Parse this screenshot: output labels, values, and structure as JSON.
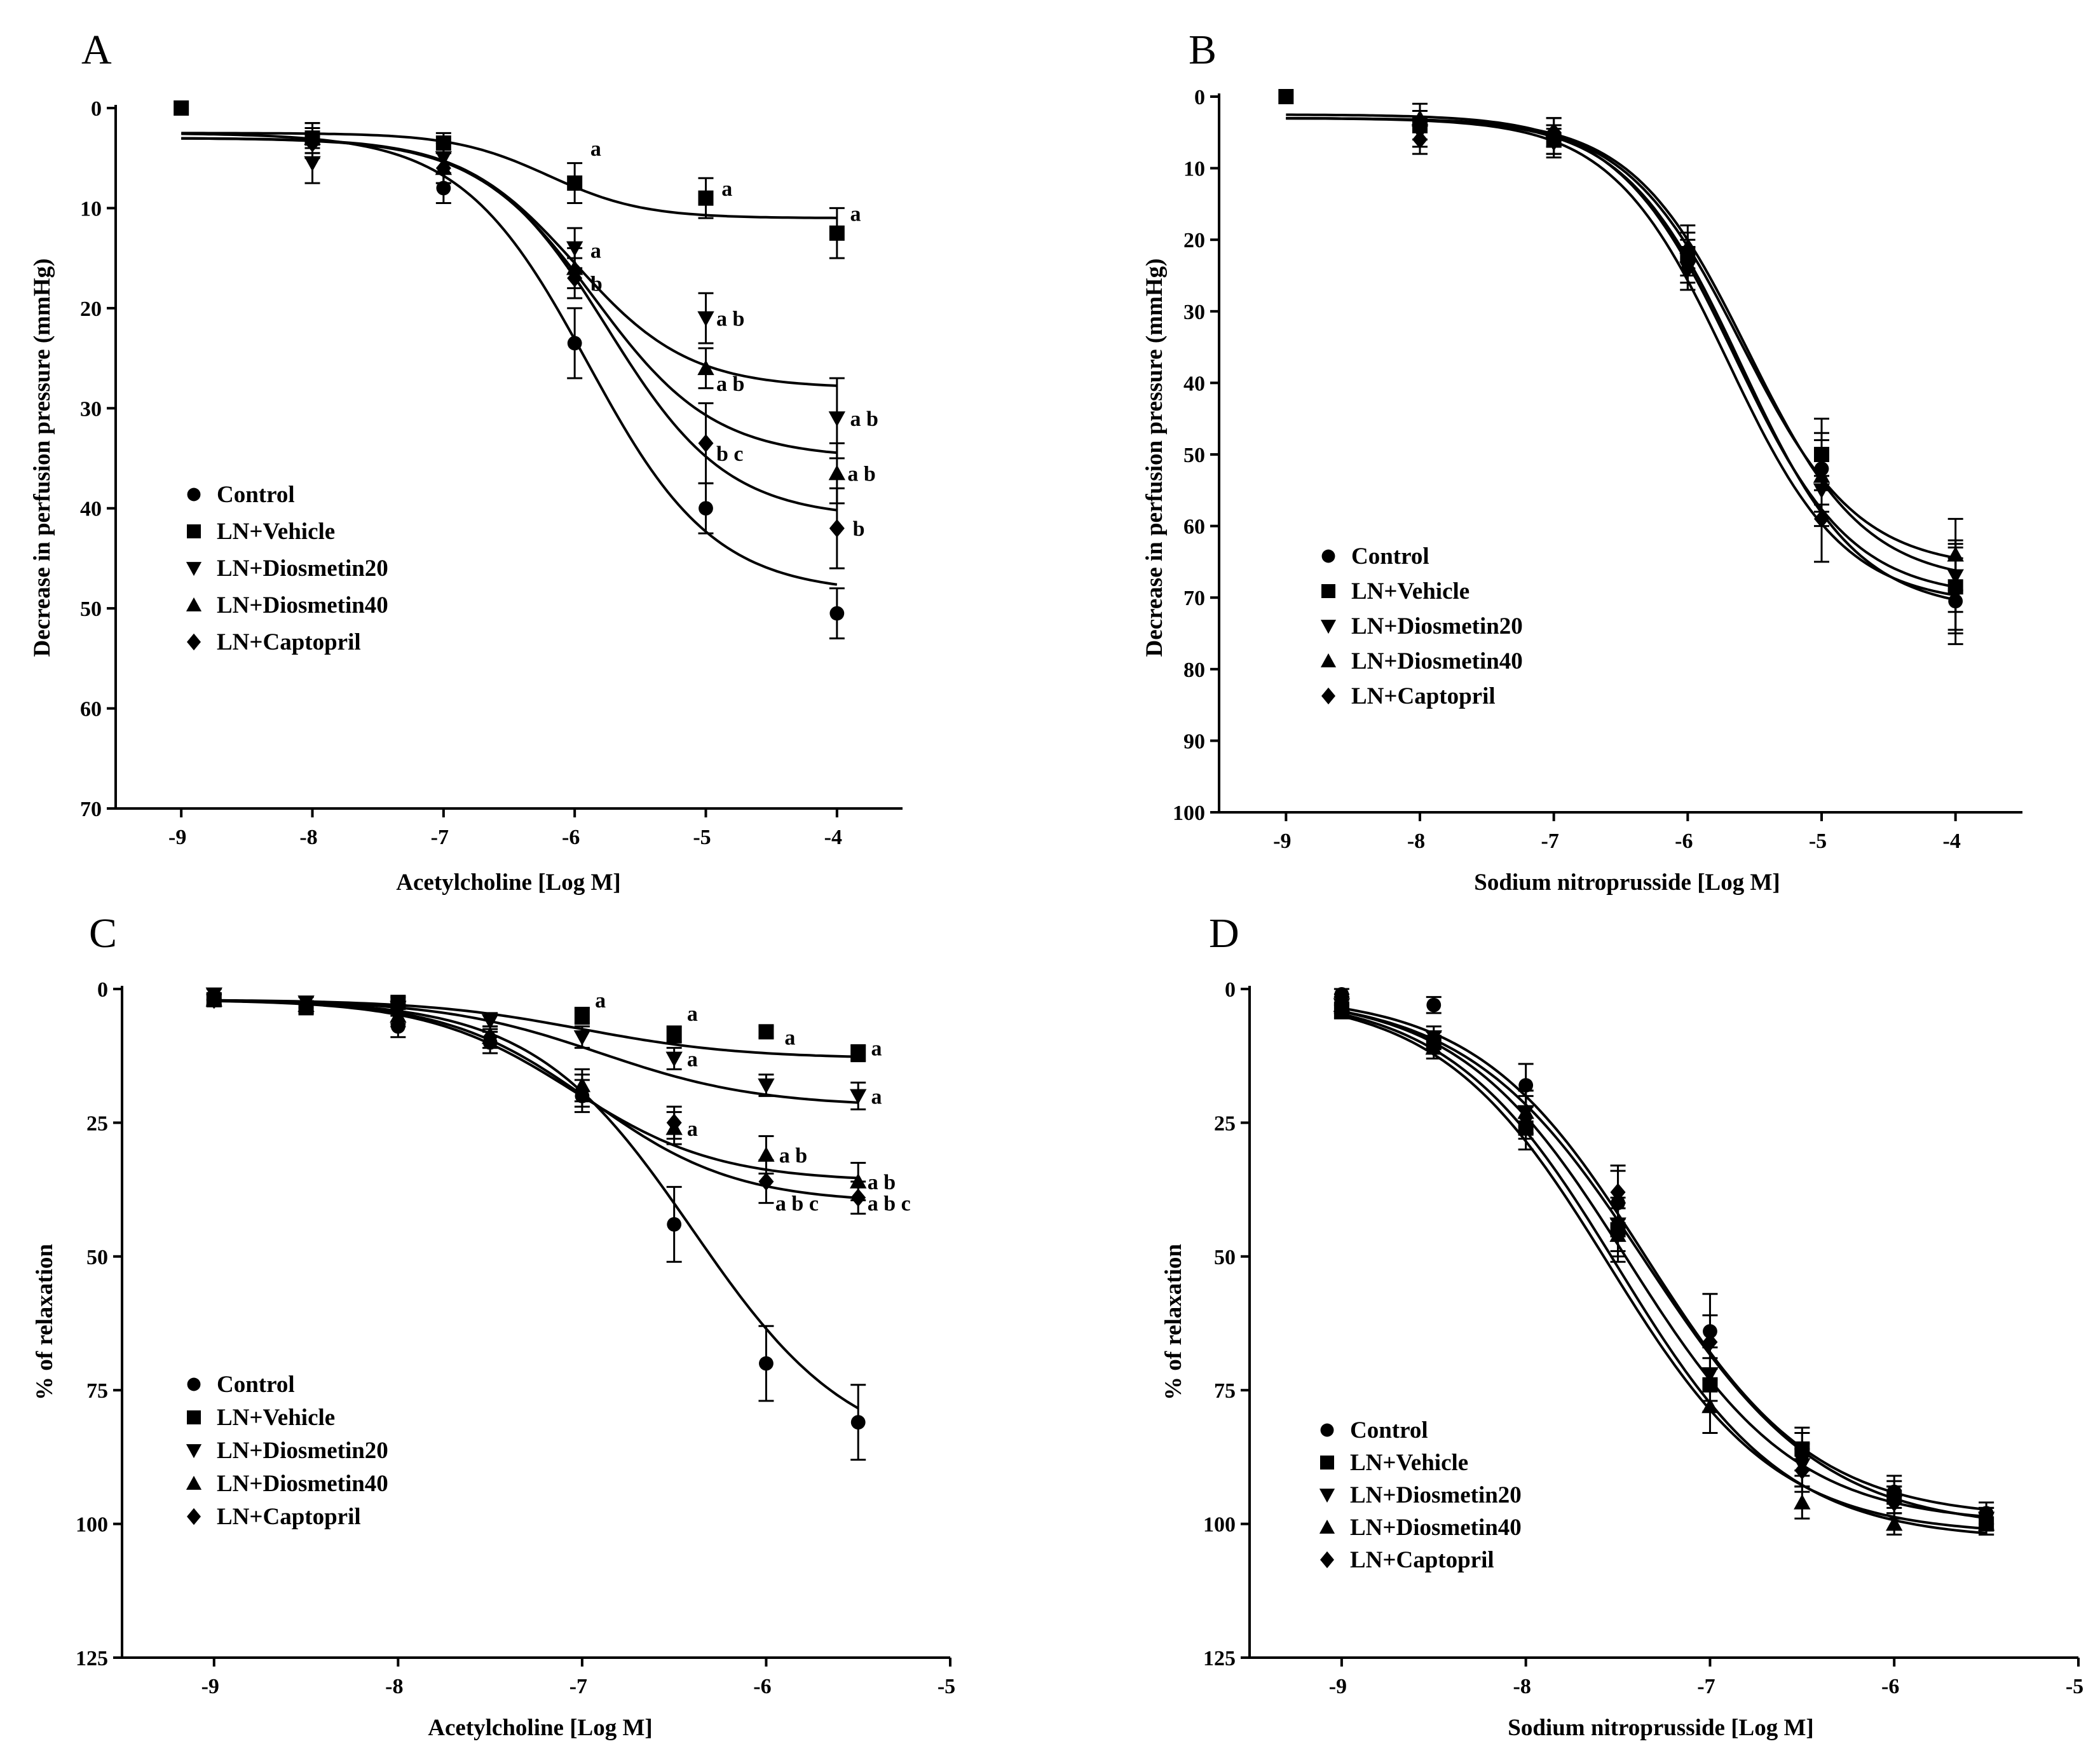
{
  "chart_data": [
    {
      "panel": "A",
      "type": "line",
      "xlabel": "Acetylcholine [Log M]",
      "ylabel": "Decrease in perfusion pressure (mmHg)",
      "xlim": [
        -9.5,
        -3.5
      ],
      "ylim": [
        0,
        70
      ],
      "y_inverted": true,
      "xticks": [
        -9,
        -8,
        -7,
        -6,
        -5,
        -4
      ],
      "yticks": [
        0,
        10,
        20,
        30,
        40,
        50,
        60,
        70
      ],
      "legend": "mid-left",
      "series": [
        {
          "name": "Control",
          "marker": "circle",
          "x": [
            -8,
            -7,
            -6,
            -5,
            -4
          ],
          "y": [
            3,
            8,
            23.5,
            40,
            50.5
          ],
          "err": [
            1.5,
            1.5,
            3.5,
            2.5,
            2.5
          ],
          "fit": {
            "bottom": 2.5,
            "top": 48.5,
            "logec50": -5.9,
            "hill": 0.9
          }
        },
        {
          "name": "LN+Vehicle",
          "marker": "square",
          "x": [
            -9,
            -8,
            -7,
            -6,
            -5,
            -4
          ],
          "y": [
            0,
            3,
            3.5,
            7.5,
            9,
            12.5
          ],
          "err": [
            0,
            1,
            1,
            2,
            2,
            2.5
          ],
          "fit": {
            "bottom": 2.5,
            "top": 11,
            "logec50": -6.2,
            "hill": 1.2
          }
        },
        {
          "name": "LN+Diosmetin20",
          "marker": "triangle-down",
          "x": [
            -8,
            -7,
            -6,
            -5,
            -4
          ],
          "y": [
            5.5,
            5,
            14,
            21,
            31
          ],
          "err": [
            2,
            1.5,
            2,
            2.5,
            4
          ],
          "fit": {
            "bottom": 3,
            "top": 28,
            "logec50": -6.0,
            "hill": 1.0
          }
        },
        {
          "name": "LN+Diosmetin40",
          "marker": "triangle-up",
          "x": [
            -8,
            -7,
            -6,
            -5,
            -4
          ],
          "y": [
            3,
            6,
            16,
            26,
            36.5
          ],
          "err": [
            1.5,
            1.5,
            2,
            2,
            3
          ]
        },
        {
          "name": "LN+Captopril",
          "marker": "diamond",
          "x": [
            -8,
            -7,
            -6,
            -5,
            -4
          ],
          "y": [
            3.5,
            6,
            17,
            33.5,
            42
          ],
          "err": [
            1.5,
            1.5,
            2,
            4,
            4
          ],
          "fit": {
            "bottom": 3,
            "top": 41,
            "logec50": -5.75,
            "hill": 0.95
          }
        }
      ],
      "extra_fits": [
        {
          "bottom": 3,
          "top": 35,
          "logec50": -5.85,
          "hill": 0.95
        }
      ],
      "annotations": [
        {
          "text": "a",
          "x": -5.88,
          "y": 4
        },
        {
          "text": "a",
          "x": -4.88,
          "y": 8
        },
        {
          "text": "a",
          "x": -3.9,
          "y": 10.5
        },
        {
          "text": "a",
          "x": -5.88,
          "y": 14.2
        },
        {
          "text": "b",
          "x": -5.88,
          "y": 17.5
        },
        {
          "text": "a b",
          "x": -4.92,
          "y": 21
        },
        {
          "text": "a b",
          "x": -4.92,
          "y": 27.5
        },
        {
          "text": "a b",
          "x": -3.9,
          "y": 31
        },
        {
          "text": "b c",
          "x": -4.92,
          "y": 34.5
        },
        {
          "text": "a b",
          "x": -3.92,
          "y": 36.5
        },
        {
          "text": "b",
          "x": -3.88,
          "y": 42
        }
      ]
    },
    {
      "panel": "B",
      "type": "line",
      "xlabel": "Sodium nitroprusside [Log M]",
      "ylabel": "Decrease in perfusion pressure (mmHg)",
      "xlim": [
        -9.5,
        -3.5
      ],
      "ylim": [
        0,
        100
      ],
      "y_inverted": true,
      "xticks": [
        -9,
        -8,
        -7,
        -6,
        -5,
        -4
      ],
      "yticks": [
        0,
        10,
        20,
        30,
        40,
        50,
        60,
        70,
        80,
        90,
        100
      ],
      "legend": "mid-left",
      "series": [
        {
          "name": "Control",
          "marker": "circle",
          "x": [
            -8,
            -7,
            -6,
            -5,
            -4
          ],
          "y": [
            4,
            6,
            23,
            52,
            70.5
          ],
          "err": [
            2,
            2,
            3,
            5,
            6
          ],
          "fit": {
            "bottom": 3,
            "top": 72,
            "logec50": -5.6,
            "hill": 1.0
          }
        },
        {
          "name": "LN+Vehicle",
          "marker": "square",
          "x": [
            -9,
            -8,
            -7,
            -6,
            -5,
            -4
          ],
          "y": [
            0,
            4,
            6,
            22,
            50,
            68.5
          ],
          "err": [
            0,
            2,
            2,
            3,
            5,
            6
          ],
          "fit": {
            "bottom": 2.5,
            "top": 70,
            "logec50": -5.65,
            "hill": 1.0
          }
        },
        {
          "name": "LN+Diosmetin20",
          "marker": "triangle-down",
          "x": [
            -8,
            -7,
            -6,
            -5,
            -4
          ],
          "y": [
            5,
            6.5,
            24,
            55,
            67
          ],
          "err": [
            2,
            2,
            3,
            5,
            5
          ],
          "fit": {
            "bottom": 3,
            "top": 68,
            "logec50": -5.55,
            "hill": 1.0
          }
        },
        {
          "name": "LN+Diosmetin40",
          "marker": "triangle-up",
          "x": [
            -8,
            -7,
            -6,
            -5,
            -4
          ],
          "y": [
            3,
            5,
            21,
            53,
            64
          ],
          "err": [
            2,
            2,
            3,
            5,
            5
          ],
          "fit": {
            "bottom": 3,
            "top": 66,
            "logec50": -5.6,
            "hill": 1.0
          }
        },
        {
          "name": "LN+Captopril",
          "marker": "diamond",
          "x": [
            -8,
            -7,
            -6,
            -5,
            -4
          ],
          "y": [
            6,
            5,
            24,
            59,
            69
          ],
          "err": [
            2,
            2,
            3,
            6,
            6
          ],
          "fit": {
            "bottom": 3,
            "top": 71,
            "logec50": -5.7,
            "hill": 1.0
          }
        }
      ],
      "annotations": []
    },
    {
      "panel": "C",
      "type": "line",
      "xlabel": "Acetylcholine [Log M]",
      "ylabel": "% of relaxation",
      "xlim": [
        -9.5,
        -5
      ],
      "ylim": [
        0,
        125
      ],
      "y_inverted": true,
      "xticks": [
        -9,
        -8,
        -7,
        -6,
        -5
      ],
      "yticks": [
        0,
        25,
        50,
        75,
        100,
        125
      ],
      "legend": "lower-left",
      "series": [
        {
          "name": "Control",
          "marker": "circle",
          "x": [
            -9,
            -8.5,
            -8,
            -7.5,
            -7,
            -6.5,
            -6,
            -5.5
          ],
          "y": [
            2,
            3,
            7,
            10,
            20,
            44,
            70,
            81
          ],
          "err": [
            1,
            1.5,
            2,
            2,
            3,
            7,
            7,
            7
          ],
          "fit": {
            "bottom": 2,
            "top": 88,
            "logec50": -6.4,
            "hill": 1.0
          }
        },
        {
          "name": "LN+Vehicle",
          "marker": "square",
          "x": [
            -9,
            -8.5,
            -8,
            -7,
            -6.5,
            -6,
            -5.5
          ],
          "y": [
            2,
            3.5,
            2.5,
            5,
            8.5,
            8,
            12
          ],
          "err": [
            1,
            1,
            1,
            1.5,
            1.5,
            1,
            1.5
          ],
          "fit": {
            "bottom": 2,
            "top": 13,
            "logec50": -7.0,
            "hill": 1.0
          }
        },
        {
          "name": "LN+Diosmetin20",
          "marker": "triangle-down",
          "x": [
            -9,
            -8.5,
            -8,
            -7.5,
            -7,
            -6.5,
            -6,
            -5.5
          ],
          "y": [
            1,
            2.5,
            3.5,
            6,
            9,
            13,
            18,
            20
          ],
          "err": [
            1,
            1,
            1,
            1.5,
            2,
            2,
            2,
            2.5
          ],
          "fit": {
            "bottom": 2,
            "top": 22,
            "logec50": -6.9,
            "hill": 1.0
          }
        },
        {
          "name": "LN+Diosmetin40",
          "marker": "triangle-up",
          "x": [
            -9,
            -8.5,
            -8,
            -7.5,
            -7,
            -6.5,
            -6,
            -5.5
          ],
          "y": [
            2,
            3,
            5,
            9,
            18,
            26,
            31,
            36
          ],
          "err": [
            1,
            1.5,
            2,
            2,
            3,
            3,
            3.5,
            3.5
          ],
          "fit": {
            "bottom": 2,
            "top": 36,
            "logec50": -7.05,
            "hill": 1.1
          }
        },
        {
          "name": "LN+Captopril",
          "marker": "diamond",
          "x": [
            -9,
            -8.5,
            -8,
            -7.5,
            -7,
            -6.5,
            -6,
            -5.5
          ],
          "y": [
            2,
            3,
            4.5,
            9,
            19,
            25,
            36,
            39
          ],
          "err": [
            1,
            1.5,
            2,
            2,
            3,
            3,
            4,
            3
          ],
          "fit": {
            "bottom": 2,
            "top": 40,
            "logec50": -6.95,
            "hill": 1.1
          }
        }
      ],
      "annotations": [
        {
          "text": "a",
          "x": -6.93,
          "y": 2
        },
        {
          "text": "a",
          "x": -6.43,
          "y": 4.5
        },
        {
          "text": "a",
          "x": -5.9,
          "y": 9
        },
        {
          "text": "a",
          "x": -5.43,
          "y": 11
        },
        {
          "text": "a",
          "x": -6.43,
          "y": 13
        },
        {
          "text": "a",
          "x": -5.43,
          "y": 20
        },
        {
          "text": "a",
          "x": -6.43,
          "y": 26
        },
        {
          "text": "a b",
          "x": -5.93,
          "y": 31
        },
        {
          "text": "a b",
          "x": -5.45,
          "y": 36
        },
        {
          "text": "a b c",
          "x": -5.95,
          "y": 40
        },
        {
          "text": "a b c",
          "x": -5.45,
          "y": 40
        }
      ]
    },
    {
      "panel": "D",
      "type": "line",
      "xlabel": "Sodium nitroprusside [Log M]",
      "ylabel": "% of relaxation",
      "xlim": [
        -9.5,
        -5
      ],
      "ylim": [
        0,
        125
      ],
      "y_inverted": true,
      "xticks": [
        -9,
        -8,
        -7,
        -6,
        -5
      ],
      "yticks": [
        0,
        25,
        50,
        75,
        100,
        125
      ],
      "legend": "lower-left",
      "series": [
        {
          "name": "Control",
          "marker": "circle",
          "x": [
            -9,
            -8.5,
            -8,
            -7.5,
            -7,
            -6.5,
            -6,
            -5.5
          ],
          "y": [
            1,
            3,
            18,
            40,
            64,
            87,
            94,
            98
          ],
          "err": [
            1,
            1.5,
            4,
            6,
            7,
            4,
            3,
            2
          ],
          "fit": {
            "bottom": 1,
            "top": 101,
            "logec50": -7.35,
            "hill": 0.9
          }
        },
        {
          "name": "LN+Vehicle",
          "marker": "square",
          "x": [
            -9,
            -8.5,
            -8,
            -7.5,
            -7,
            -6.5,
            -6,
            -5.5
          ],
          "y": [
            4,
            10,
            26,
            45,
            74,
            86,
            95,
            100
          ],
          "err": [
            1.5,
            2,
            4,
            5,
            5,
            4,
            3,
            2
          ],
          "fit": {
            "bottom": 1,
            "top": 100,
            "logec50": -7.45,
            "hill": 0.95
          }
        },
        {
          "name": "LN+Diosmetin20",
          "marker": "triangle-down",
          "x": [
            -9,
            -8.5,
            -8,
            -7.5,
            -7,
            -6.5,
            -6,
            -5.5
          ],
          "y": [
            3,
            9,
            23,
            44,
            72,
            89,
            96,
            99
          ],
          "err": [
            1.5,
            2,
            4,
            5,
            5,
            4,
            3,
            2
          ],
          "fit": {
            "bottom": 1,
            "top": 103,
            "logec50": -7.5,
            "hill": 0.95
          }
        },
        {
          "name": "LN+Diosmetin40",
          "marker": "triangle-up",
          "x": [
            -9,
            -8.5,
            -8,
            -7.5,
            -7,
            -6.5,
            -6,
            -5.5
          ],
          "y": [
            3,
            11,
            23,
            46,
            78,
            96,
            100,
            100
          ],
          "err": [
            1.5,
            2,
            4,
            5,
            5,
            3,
            2,
            2
          ],
          "fit": {
            "bottom": 1,
            "top": 102,
            "logec50": -7.55,
            "hill": 0.95
          }
        },
        {
          "name": "LN+Captopril",
          "marker": "diamond",
          "x": [
            -9,
            -8.5,
            -8,
            -7.5,
            -7,
            -6.5,
            -6,
            -5.5
          ],
          "y": [
            2,
            10,
            24,
            38,
            66,
            90,
            96,
            99
          ],
          "err": [
            1,
            2,
            4,
            5,
            5,
            4,
            3,
            2
          ],
          "fit": {
            "bottom": 1,
            "top": 99,
            "logec50": -7.35,
            "hill": 0.95
          }
        }
      ],
      "annotations": []
    }
  ]
}
